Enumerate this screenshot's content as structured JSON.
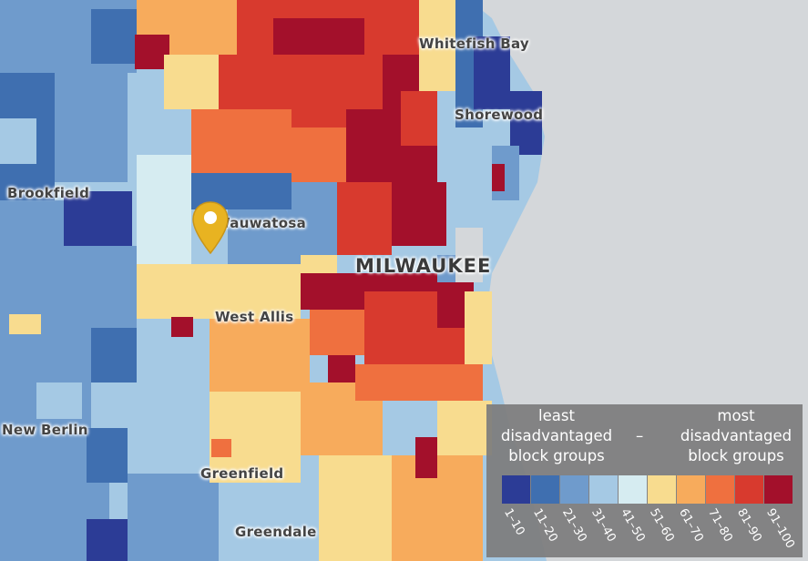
{
  "places": {
    "whitefish_bay": "Whitefish Bay",
    "shorewood": "Shorewood",
    "brookfield": "Brookfield",
    "wauwatosa": "Wauwatosa",
    "milwaukee": "MILWAUKEE",
    "west_allis": "West Allis",
    "new_berlin": "New Berlin",
    "greenfield": "Greenfield",
    "greendale": "Greendale"
  },
  "marker": {
    "icon": "map-pin-icon",
    "color": "#e8b321"
  },
  "legend": {
    "left_label_line1": "least",
    "left_label_line2": "disadvantaged",
    "left_label_line3": "block groups",
    "separator": "–",
    "right_label_line1": "most",
    "right_label_line2": "disadvantaged",
    "right_label_line3": "block groups",
    "bins": [
      {
        "label": "1–10",
        "color": "#2c3c96"
      },
      {
        "label": "11–20",
        "color": "#3f6fb0"
      },
      {
        "label": "21–30",
        "color": "#6f9bcc"
      },
      {
        "label": "31–40",
        "color": "#a5c9e4"
      },
      {
        "label": "41–50",
        "color": "#d6ecf1"
      },
      {
        "label": "51–60",
        "color": "#f8dc8f"
      },
      {
        "label": "61–70",
        "color": "#f7ab5c"
      },
      {
        "label": "71–80",
        "color": "#ef703f"
      },
      {
        "label": "81–90",
        "color": "#d83a2e"
      },
      {
        "label": "91–100",
        "color": "#a3102b"
      }
    ]
  },
  "colors": {
    "lake": "#d4d7da"
  }
}
